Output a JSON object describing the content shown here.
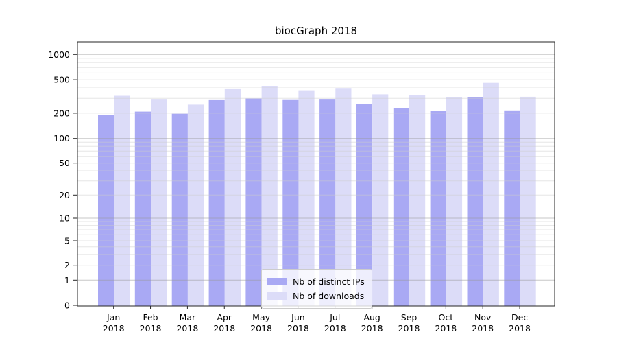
{
  "title": "biocGraph 2018",
  "legend": {
    "items": [
      {
        "label": "Nb of distinct IPs",
        "color": "#a9a9f4"
      },
      {
        "label": "Nb of downloads",
        "color": "#dcdcf8"
      }
    ]
  },
  "chart_data": {
    "type": "bar",
    "title": "biocGraph 2018",
    "categories": [
      "Jan",
      "Feb",
      "Mar",
      "Apr",
      "May",
      "Jun",
      "Jul",
      "Aug",
      "Sep",
      "Oct",
      "Nov",
      "Dec"
    ],
    "category_year": "2018",
    "series": [
      {
        "name": "Nb of distinct IPs",
        "color": "#a9a9f4",
        "values": [
          192,
          209,
          197,
          286,
          299,
          287,
          290,
          256,
          229,
          211,
          308,
          212
        ]
      },
      {
        "name": "Nb of downloads",
        "color": "#dcdcf8",
        "values": [
          322,
          290,
          253,
          386,
          421,
          374,
          391,
          335,
          330,
          313,
          459,
          314
        ]
      }
    ],
    "xlabel": "",
    "ylabel": "",
    "y_scale": "symlog",
    "y_ticks": [
      1000,
      500,
      200,
      100,
      50,
      20,
      10,
      5,
      2,
      1,
      0
    ],
    "ylim": [
      0,
      1400
    ],
    "grid": true,
    "legend_position": "lower-center"
  }
}
